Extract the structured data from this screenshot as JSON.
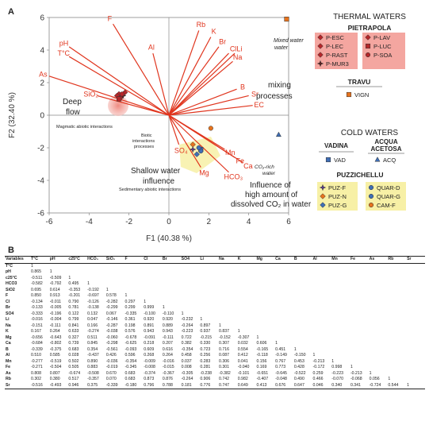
{
  "panel_a": {
    "letter": "A",
    "x_axis_title": "F1 (40.38 %)",
    "y_axis_title": "F2 (32.40 %)",
    "x_ticks": [
      "-6",
      "-4",
      "-2",
      "0",
      "2",
      "4",
      "6"
    ],
    "y_ticks": [
      "6",
      "4",
      "2",
      "0",
      "-2",
      "-4",
      "-6"
    ],
    "annotations": {
      "mixed_water": "Mixed water",
      "mixing_1": "mixing",
      "mixing_2": "processes",
      "deep_1": "Deep",
      "deep_2": "flow",
      "magmatic": "Magmatic abiotic interactions",
      "biotic_1": "Biotic",
      "biotic_2": "interactions",
      "biotic_3": "processes",
      "co2_1": "CO₂-rich",
      "co2_2": "water",
      "shallow_1": "Shallow water",
      "shallow_2": "influence",
      "sedimentary": "Sedimentary abiotic interactions",
      "infl_1": "Influence of",
      "infl_2": "high amount of",
      "infl_3": "dissolved CO₂ in water"
    },
    "colors": {
      "vector": "#e0351e",
      "highlight_pink": "#f4a6a0",
      "highlight_yellow": "#f7f0a6",
      "orange": "#e6731e",
      "blue": "#3f6eb5",
      "dark_red": "#b5272a",
      "purple": "#5a3d8a"
    }
  },
  "chart_data": {
    "type": "scatter",
    "title": "",
    "xlabel": "F1 (40.38 %)",
    "ylabel": "F2 (32.40 %)",
    "xlim": [
      -6,
      6
    ],
    "ylim": [
      -6,
      6
    ],
    "grid": false,
    "vectors": [
      {
        "name": "F",
        "x": -2.8,
        "y": 5.6
      },
      {
        "name": "pH",
        "x": -5.0,
        "y": 4.2
      },
      {
        "name": "T°C",
        "x": -5.0,
        "y": 3.6
      },
      {
        "name": "Al",
        "x": -0.8,
        "y": 3.8
      },
      {
        "name": "As",
        "x": -6.0,
        "y": 2.4
      },
      {
        "name": "SiO₂",
        "x": -3.6,
        "y": 1.2
      },
      {
        "name": "Rb",
        "x": 1.5,
        "y": 5.2
      },
      {
        "name": "K",
        "x": 2.1,
        "y": 4.8
      },
      {
        "name": "Br",
        "x": 2.5,
        "y": 4.2
      },
      {
        "name": "Cl",
        "x": 3.0,
        "y": 3.8
      },
      {
        "name": "Li",
        "x": 3.3,
        "y": 3.8
      },
      {
        "name": "Na",
        "x": 3.2,
        "y": 3.3
      },
      {
        "name": "B",
        "x": 3.4,
        "y": 1.6
      },
      {
        "name": "Sr",
        "x": 4.0,
        "y": 1.2
      },
      {
        "name": "EC",
        "x": 4.2,
        "y": 0.6
      },
      {
        "name": "SO₄",
        "x": 0.5,
        "y": -1.8
      },
      {
        "name": "Mg",
        "x": 1.6,
        "y": -3.2
      },
      {
        "name": "HCO₃",
        "x": 3.0,
        "y": -3.5
      },
      {
        "name": "Mn",
        "x": 2.8,
        "y": -2.1
      },
      {
        "name": "Fe",
        "x": 3.3,
        "y": -2.6
      },
      {
        "name": "Ca",
        "x": 3.7,
        "y": -2.9
      }
    ],
    "points": [
      {
        "group": "P-ESC",
        "x": -2.5,
        "y": 1.3
      },
      {
        "group": "P-LEC",
        "x": -2.4,
        "y": 1.1
      },
      {
        "group": "P-RAST",
        "x": -2.6,
        "y": 1.2
      },
      {
        "group": "P-MUR3",
        "x": -2.3,
        "y": 1.2
      },
      {
        "group": "P-LAV",
        "x": -2.2,
        "y": 1.4
      },
      {
        "group": "P-LUC",
        "x": -2.5,
        "y": 1.0
      },
      {
        "group": "P-SOA",
        "x": -2.35,
        "y": 1.3
      },
      {
        "group": "VIGN",
        "x": 5.9,
        "y": 5.9
      },
      {
        "group": "VAD",
        "x": 1.6,
        "y": -2.1
      },
      {
        "group": "ACQ",
        "x": 5.5,
        "y": -1.2
      },
      {
        "group": "PUZ-F",
        "x": 1.2,
        "y": -2.1
      },
      {
        "group": "PUZ-N",
        "x": 1.2,
        "y": -1.8
      },
      {
        "group": "PUZ-G",
        "x": 1.4,
        "y": -2.4
      },
      {
        "group": "QUAR-D",
        "x": 1.6,
        "y": -2.2
      },
      {
        "group": "QUAR-G",
        "x": 1.5,
        "y": -2.0
      },
      {
        "group": "CAM-F",
        "x": 2.1,
        "y": -0.8
      }
    ]
  },
  "legend": {
    "thermal_title": "THERMAL WATERS",
    "pietrapola_title": "PIETRAPOLA",
    "pietrapola_items": [
      "P-ESC",
      "P-LEC",
      "P-RAST",
      "P-MUR3",
      "P-LAV",
      "P-LUC",
      "P-SOA"
    ],
    "travu_title": "TRAVU",
    "travu_items": [
      "VIGN"
    ],
    "cold_title": "COLD WATERS",
    "vadina_title": "VADINA",
    "vadina_items": [
      "VAD"
    ],
    "acqua_title_1": "ACQUA",
    "acqua_title_2": "ACETOSA",
    "acqua_items": [
      "ACQ"
    ],
    "puzz_title": "PUZZICHELLU",
    "puzz_items": [
      "PUZ-F",
      "PUZ-N",
      "PUZ-G",
      "QUAR-D",
      "QUAR-G",
      "CAM-F"
    ]
  },
  "panel_b": {
    "letter": "B",
    "headers": [
      "Variables",
      "T°C",
      "pH",
      "c25°C",
      "HCO₃",
      "SiO₂",
      "F",
      "Cl",
      "Br",
      "SO4",
      "Li",
      "Na",
      "K",
      "Mg",
      "Ca",
      "B",
      "Al",
      "Mn",
      "Fe",
      "As",
      "Rb",
      "Sr"
    ],
    "rows": [
      [
        "T°C",
        "1"
      ],
      [
        "pH",
        "0.865",
        "1"
      ],
      [
        "c25°C",
        "-0.511",
        "-0.509",
        "1"
      ],
      [
        "HCO3",
        "-0.582",
        "-0.792",
        "0.495",
        "1"
      ],
      [
        "SiO2",
        "0.695",
        "0.614",
        "-0.353",
        "-0.192",
        "1"
      ],
      [
        "F",
        "0.850",
        "0.913",
        "-0.201",
        "-0.697",
        "0.578",
        "1"
      ],
      [
        "Cl",
        "-0.134",
        "-0.011",
        "0.790",
        "-0.126",
        "-0.282",
        "0.297",
        "1"
      ],
      [
        "Br",
        "-0.133",
        "-0.005",
        "0.781",
        "-0.138",
        "-0.299",
        "0.299",
        "0.999",
        "1"
      ],
      [
        "SO4",
        "-0.333",
        "-0.196",
        "0.122",
        "0.132",
        "0.067",
        "-0.335",
        "-0.100",
        "-0.110",
        "1"
      ],
      [
        "Li",
        "-0.016",
        "-0.004",
        "0.799",
        "0.047",
        "-0.146",
        "0.361",
        "0.920",
        "0.920",
        "-0.232",
        "1"
      ],
      [
        "Na",
        "-0.151",
        "-0.111",
        "0.841",
        "0.166",
        "-0.287",
        "0.198",
        "0.891",
        "0.889",
        "-0.264",
        "0.897",
        "1"
      ],
      [
        "K",
        "0.167",
        "0.264",
        "0.633",
        "-0.274",
        "-0.038",
        "0.576",
        "0.943",
        "0.943",
        "-0.223",
        "0.937",
        "0.837",
        "1"
      ],
      [
        "Mg",
        "-0.656",
        "-0.643",
        "0.327",
        "0.511",
        "-0.060",
        "-0.678",
        "-0.091",
        "-0.111",
        "0.722",
        "-0.215",
        "-0.152",
        "-0.307",
        "1"
      ],
      [
        "Ca",
        "-0.684",
        "-0.802",
        "0.739",
        "0.845",
        "-0.298",
        "-0.625",
        "0.218",
        "0.207",
        "0.382",
        "0.330",
        "0.307",
        "0.032",
        "0.606",
        "1"
      ],
      [
        "B",
        "-0.339",
        "-0.375",
        "0.683",
        "0.354",
        "-0.561",
        "-0.093",
        "0.609",
        "0.616",
        "-0.354",
        "0.723",
        "0.716",
        "0.554",
        "-0.165",
        "0.451",
        "1"
      ],
      [
        "Al",
        "0.510",
        "0.585",
        "0.028",
        "-0.437",
        "0.426",
        "0.596",
        "0.268",
        "0.264",
        "0.458",
        "0.256",
        "0.087",
        "0.412",
        "-0.118",
        "-0.149",
        "-0.150",
        "1"
      ],
      [
        "Mn",
        "-0.277",
        "-0.519",
        "0.502",
        "0.890",
        "-0.036",
        "-0.354",
        "-0.009",
        "-0.016",
        "0.037",
        "0.283",
        "0.306",
        "0.041",
        "0.156",
        "0.767",
        "0.453",
        "-0.213",
        "1"
      ],
      [
        "Fe",
        "-0.271",
        "-0.504",
        "0.505",
        "0.883",
        "-0.019",
        "-0.345",
        "-0.008",
        "-0.015",
        "0.008",
        "0.281",
        "0.301",
        "-0.040",
        "0.169",
        "0.773",
        "0.428",
        "-0.172",
        "0.998",
        "1"
      ],
      [
        "As",
        "0.808",
        "0.807",
        "-0.674",
        "-0.508",
        "0.670",
        "0.683",
        "-0.374",
        "-0.367",
        "-0.305",
        "-0.238",
        "-0.382",
        "-0.101",
        "-0.651",
        "-0.645",
        "-0.522",
        "0.259",
        "-0.223",
        "-0.213",
        "1"
      ],
      [
        "Rb",
        "0.302",
        "0.380",
        "0.517",
        "-0.357",
        "0.070",
        "0.683",
        "0.873",
        "0.876",
        "-0.264",
        "0.906",
        "0.742",
        "0.982",
        "-0.407",
        "-0.048",
        "0.490",
        "0.466",
        "-0.070",
        "-0.068",
        "0.056",
        "1"
      ],
      [
        "Sr",
        "-0.516",
        "-0.493",
        "0.946",
        "0.375",
        "-0.339",
        "-0.180",
        "0.796",
        "0.788",
        "0.181",
        "0.776",
        "0.747",
        "0.649",
        "0.413",
        "0.676",
        "0.647",
        "0.046",
        "0.340",
        "0.341",
        "-0.724",
        "0.544",
        "1"
      ]
    ]
  }
}
